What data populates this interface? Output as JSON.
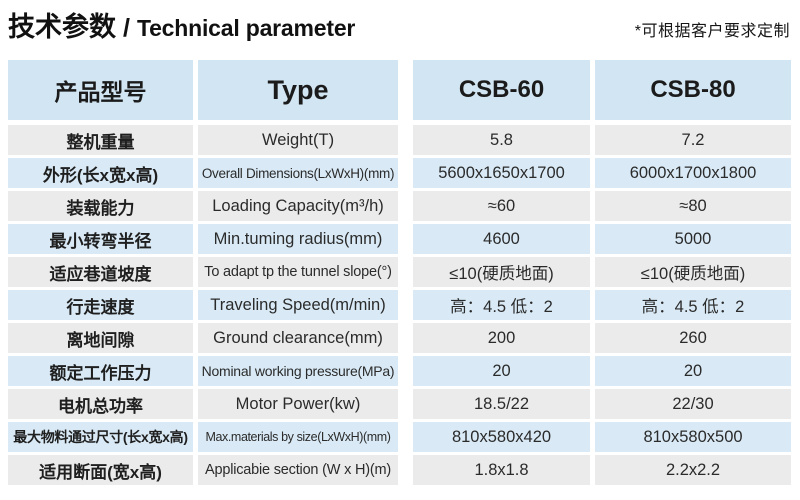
{
  "title": {
    "zh": "技术参数",
    "separator": "/",
    "en": "Technical parameter"
  },
  "note": "*可根据客户要求定制",
  "table": {
    "headers": {
      "model": "产品型号",
      "type": "Type",
      "csb60": "CSB-60",
      "csb80": "CSB-80"
    },
    "rows": [
      {
        "zh": "整机重量",
        "en": "Weight(T)",
        "csb60": "5.8",
        "csb80": "7.2"
      },
      {
        "zh": "外形(长x宽x高)",
        "en": "Overall Dimensions(LxWxH)(mm)",
        "csb60": "5600x1650x1700",
        "csb80": "6000x1700x1800"
      },
      {
        "zh": "装载能力",
        "en": "Loading Capacity(m³/h)",
        "csb60": "≈60",
        "csb80": "≈80"
      },
      {
        "zh": "最小转弯半径",
        "en": "Min.tuming radius(mm)",
        "csb60": "4600",
        "csb80": "5000"
      },
      {
        "zh": "适应巷道坡度",
        "en": "To adapt tp the tunnel slope(°)",
        "csb60": "≤10(硬质地面)",
        "csb80": "≤10(硬质地面)"
      },
      {
        "zh": "行走速度",
        "en": "Traveling Speed(m/min)",
        "csb60": "高：4.5 低：2",
        "csb80": "高：4.5 低：2"
      },
      {
        "zh": "离地间隙",
        "en": "Ground clearance(mm)",
        "csb60": "200",
        "csb80": "260"
      },
      {
        "zh": "额定工作压力",
        "en": "Nominal working pressure(MPa)",
        "csb60": "20",
        "csb80": "20"
      },
      {
        "zh": "电机总功率",
        "en": "Motor Power(kw)",
        "csb60": "18.5/22",
        "csb80": "22/30"
      },
      {
        "zh": "最大物料通过尺寸(长x宽x高)",
        "en": "Max.materials by size(LxWxH)(mm)",
        "csb60": "810x580x420",
        "csb80": "810x580x500"
      },
      {
        "zh": "适用断面(宽x高)",
        "en": "Applicabie section (W x H)(m)",
        "csb60": "1.8x1.8",
        "csb80": "2.2x2.2"
      }
    ]
  },
  "colors": {
    "headerBlue": "#d2e5f2",
    "rowBlue": "#d9eaf6",
    "rowGray": "#ebebeb",
    "titleText": "#111111",
    "cellText": "#222222"
  }
}
